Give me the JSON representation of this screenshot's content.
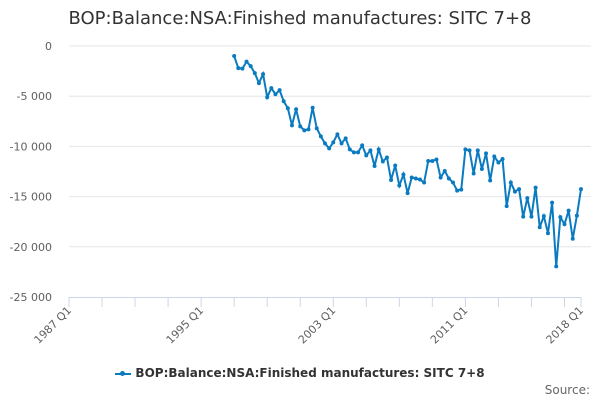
{
  "chart_data": {
    "type": "line",
    "title": "BOP:Balance:NSA:Finished manufactures: SITC 7+8",
    "series": [
      {
        "name": "BOP:Balance:NSA:Finished manufactures: SITC 7+8",
        "start": "1997 Q1",
        "values": [
          -1000,
          -2200,
          -2250,
          -1560,
          -2000,
          -2700,
          -3700,
          -2800,
          -5100,
          -4200,
          -4800,
          -4400,
          -5500,
          -6200,
          -7900,
          -6300,
          -8000,
          -8400,
          -8300,
          -6150,
          -8200,
          -9000,
          -9700,
          -10200,
          -9600,
          -8800,
          -9700,
          -9200,
          -10300,
          -10600,
          -10600,
          -9900,
          -10900,
          -10400,
          -11950,
          -10300,
          -11500,
          -11100,
          -13350,
          -11900,
          -13900,
          -12800,
          -14650,
          -13100,
          -13200,
          -13300,
          -13600,
          -11450,
          -11450,
          -11300,
          -13100,
          -12450,
          -13200,
          -13600,
          -14400,
          -14300,
          -10300,
          -10400,
          -12700,
          -10400,
          -12250,
          -10700,
          -13400,
          -11000,
          -11600,
          -11250,
          -15950,
          -13600,
          -14500,
          -14250,
          -17000,
          -15150,
          -17000,
          -14100,
          -18050,
          -16950,
          -18650,
          -15600,
          -21950,
          -17050,
          -17750,
          -16400,
          -19200,
          -16900,
          -14250
        ]
      }
    ],
    "x_range": [
      "1987 Q1",
      "2018 Q1"
    ],
    "x_tick_labels": [
      "1987 Q1",
      "1995 Q1",
      "2003 Q1",
      "2011 Q1",
      "2018 Q1"
    ],
    "y_tick_labels": [
      "0",
      "-5 000",
      "-10 000",
      "-15 000",
      "-20 000",
      "-25 000"
    ],
    "ylim": [
      -25000,
      0
    ],
    "grid": true,
    "legend": "bottom",
    "color": "#0a7bc1"
  },
  "source_label": "Source:"
}
